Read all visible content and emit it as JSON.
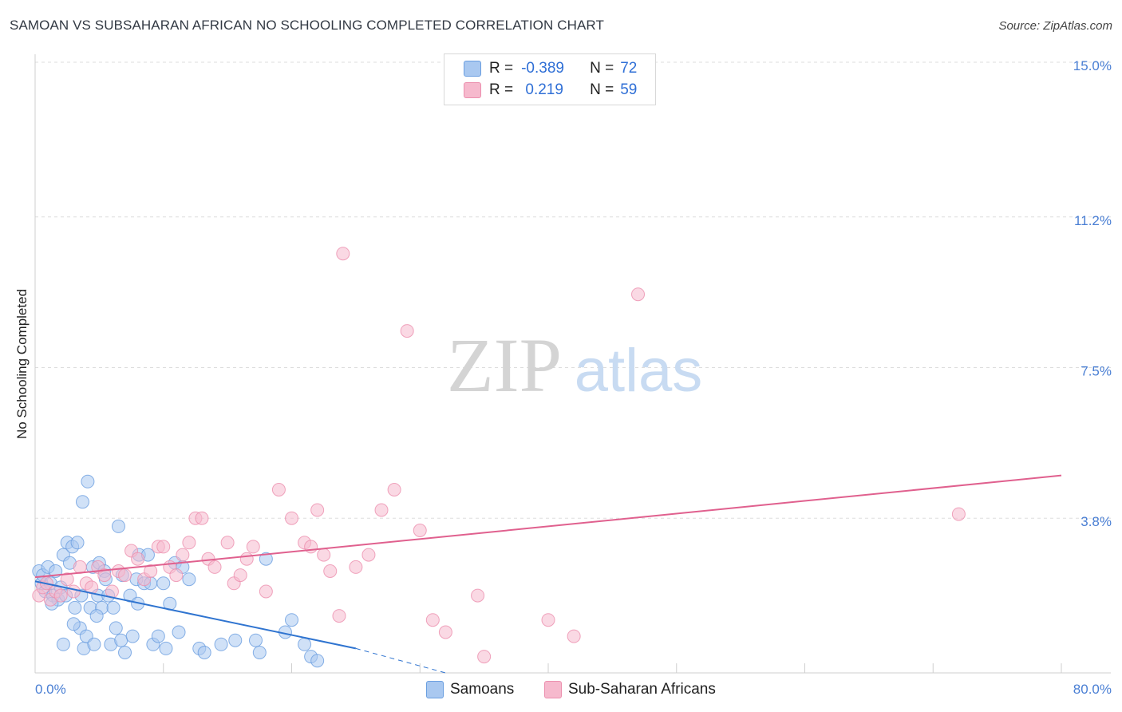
{
  "title": "SAMOAN VS SUBSAHARAN AFRICAN NO SCHOOLING COMPLETED CORRELATION CHART",
  "source": "Source: ZipAtlas.com",
  "watermark": {
    "zip": "ZIP",
    "atlas": "atlas"
  },
  "legend": {
    "row1": {
      "r_label": "R =",
      "r_value": "-0.389",
      "n_label": "N =",
      "n_value": "72"
    },
    "row2": {
      "r_label": "R =",
      "r_value": " 0.219",
      "n_label": "N =",
      "n_value": "59"
    }
  },
  "bottom_legend": {
    "samoans": "Samoans",
    "africans": "Sub-Saharan Africans"
  },
  "colors": {
    "samoan_fill": "#a9c8f0",
    "samoan_stroke": "#6a9ee0",
    "samoan_line": "#2f74d0",
    "african_fill": "#f6b9cd",
    "african_stroke": "#ec8fae",
    "african_line": "#e0608e",
    "tick_text": "#4a7fd4",
    "grid": "#dddddd"
  },
  "chart_data": {
    "type": "scatter",
    "title": "SAMOAN VS SUBSAHARAN AFRICAN NO SCHOOLING COMPLETED CORRELATION CHART",
    "xlabel": "",
    "ylabel": "No Schooling Completed",
    "xlim": [
      0,
      80
    ],
    "ylim": [
      0,
      15
    ],
    "x_tick_labels": [
      "0.0%",
      "80.0%"
    ],
    "y_ticks": [
      {
        "value": 3.8,
        "label": "3.8%"
      },
      {
        "value": 7.5,
        "label": "7.5%"
      },
      {
        "value": 11.2,
        "label": "11.2%"
      },
      {
        "value": 15.0,
        "label": "15.0%"
      }
    ],
    "series": [
      {
        "name": "Samoans",
        "R": -0.389,
        "N": 72,
        "trend": {
          "x0": 0,
          "y0": 2.25,
          "x1": 25,
          "y1": 0.6,
          "dash_to_x": 32,
          "dash_to_y": 0.0
        },
        "points": [
          [
            0.3,
            2.5
          ],
          [
            0.5,
            2.2
          ],
          [
            0.6,
            2.4
          ],
          [
            0.8,
            2.0
          ],
          [
            1.0,
            2.6
          ],
          [
            1.2,
            2.2
          ],
          [
            1.4,
            1.9
          ],
          [
            1.6,
            2.5
          ],
          [
            1.8,
            1.8
          ],
          [
            2.0,
            2.1
          ],
          [
            2.2,
            2.9
          ],
          [
            2.4,
            1.9
          ],
          [
            2.5,
            3.2
          ],
          [
            2.7,
            2.7
          ],
          [
            2.9,
            3.1
          ],
          [
            3.1,
            1.6
          ],
          [
            3.3,
            3.2
          ],
          [
            3.5,
            1.1
          ],
          [
            3.6,
            1.9
          ],
          [
            3.7,
            4.2
          ],
          [
            3.8,
            0.6
          ],
          [
            4.0,
            0.9
          ],
          [
            4.1,
            4.7
          ],
          [
            4.3,
            1.6
          ],
          [
            4.5,
            2.6
          ],
          [
            4.6,
            0.7
          ],
          [
            4.9,
            1.9
          ],
          [
            5.0,
            2.7
          ],
          [
            5.2,
            1.6
          ],
          [
            5.4,
            2.5
          ],
          [
            5.5,
            2.3
          ],
          [
            5.7,
            1.9
          ],
          [
            5.9,
            0.7
          ],
          [
            6.1,
            1.6
          ],
          [
            6.3,
            1.1
          ],
          [
            6.5,
            3.6
          ],
          [
            6.7,
            0.8
          ],
          [
            7.0,
            0.5
          ],
          [
            7.4,
            1.9
          ],
          [
            7.6,
            0.9
          ],
          [
            7.9,
            2.3
          ],
          [
            8.0,
            1.7
          ],
          [
            8.1,
            2.9
          ],
          [
            8.5,
            2.2
          ],
          [
            9.0,
            2.2
          ],
          [
            9.2,
            0.7
          ],
          [
            9.6,
            0.9
          ],
          [
            10.0,
            2.2
          ],
          [
            10.2,
            0.6
          ],
          [
            10.5,
            1.7
          ],
          [
            10.9,
            2.7
          ],
          [
            11.5,
            2.6
          ],
          [
            12.0,
            2.3
          ],
          [
            12.8,
            0.6
          ],
          [
            13.2,
            0.5
          ],
          [
            14.5,
            0.7
          ],
          [
            15.6,
            0.8
          ],
          [
            17.5,
            0.5
          ],
          [
            18.0,
            2.8
          ],
          [
            19.5,
            1.0
          ],
          [
            20.0,
            1.3
          ],
          [
            21.0,
            0.7
          ],
          [
            21.5,
            0.4
          ],
          [
            22.0,
            0.3
          ],
          [
            17.2,
            0.8
          ],
          [
            8.8,
            2.9
          ],
          [
            3.0,
            1.2
          ],
          [
            2.2,
            0.7
          ],
          [
            6.8,
            2.4
          ],
          [
            1.3,
            1.7
          ],
          [
            4.8,
            1.4
          ],
          [
            11.2,
            1.0
          ]
        ]
      },
      {
        "name": "Sub-Saharan Africans",
        "R": 0.219,
        "N": 59,
        "trend": {
          "x0": 0,
          "y0": 2.35,
          "x1": 80,
          "y1": 4.85
        },
        "points": [
          [
            0.3,
            1.9
          ],
          [
            0.6,
            2.1
          ],
          [
            0.9,
            2.2
          ],
          [
            1.2,
            1.8
          ],
          [
            1.6,
            2.0
          ],
          [
            2.0,
            1.9
          ],
          [
            2.5,
            2.3
          ],
          [
            3.0,
            2.0
          ],
          [
            3.5,
            2.6
          ],
          [
            4.0,
            2.2
          ],
          [
            4.4,
            2.1
          ],
          [
            4.9,
            2.6
          ],
          [
            5.4,
            2.4
          ],
          [
            6.0,
            2.0
          ],
          [
            6.5,
            2.5
          ],
          [
            7.0,
            2.4
          ],
          [
            7.5,
            3.0
          ],
          [
            8.0,
            2.8
          ],
          [
            8.5,
            2.3
          ],
          [
            9.0,
            2.5
          ],
          [
            9.6,
            3.1
          ],
          [
            10.0,
            3.1
          ],
          [
            10.5,
            2.6
          ],
          [
            11.0,
            2.4
          ],
          [
            11.5,
            2.9
          ],
          [
            12.0,
            3.2
          ],
          [
            12.5,
            3.8
          ],
          [
            13.0,
            3.8
          ],
          [
            13.5,
            2.8
          ],
          [
            14.0,
            2.6
          ],
          [
            15.0,
            3.2
          ],
          [
            15.5,
            2.2
          ],
          [
            16.0,
            2.4
          ],
          [
            16.5,
            2.8
          ],
          [
            17.0,
            3.1
          ],
          [
            18.0,
            2.0
          ],
          [
            19.0,
            4.5
          ],
          [
            20.0,
            3.8
          ],
          [
            21.0,
            3.2
          ],
          [
            21.5,
            3.1
          ],
          [
            22.0,
            4.0
          ],
          [
            22.5,
            2.9
          ],
          [
            23.0,
            2.5
          ],
          [
            23.7,
            1.4
          ],
          [
            24.0,
            10.3
          ],
          [
            25.0,
            2.6
          ],
          [
            26.0,
            2.9
          ],
          [
            27.0,
            4.0
          ],
          [
            28.0,
            4.5
          ],
          [
            29.0,
            8.4
          ],
          [
            30.0,
            3.5
          ],
          [
            31.0,
            1.3
          ],
          [
            32.0,
            1.0
          ],
          [
            34.5,
            1.9
          ],
          [
            35.0,
            0.4
          ],
          [
            40.0,
            1.3
          ],
          [
            42.0,
            0.9
          ],
          [
            47.0,
            9.3
          ],
          [
            72.0,
            3.9
          ]
        ]
      }
    ]
  }
}
